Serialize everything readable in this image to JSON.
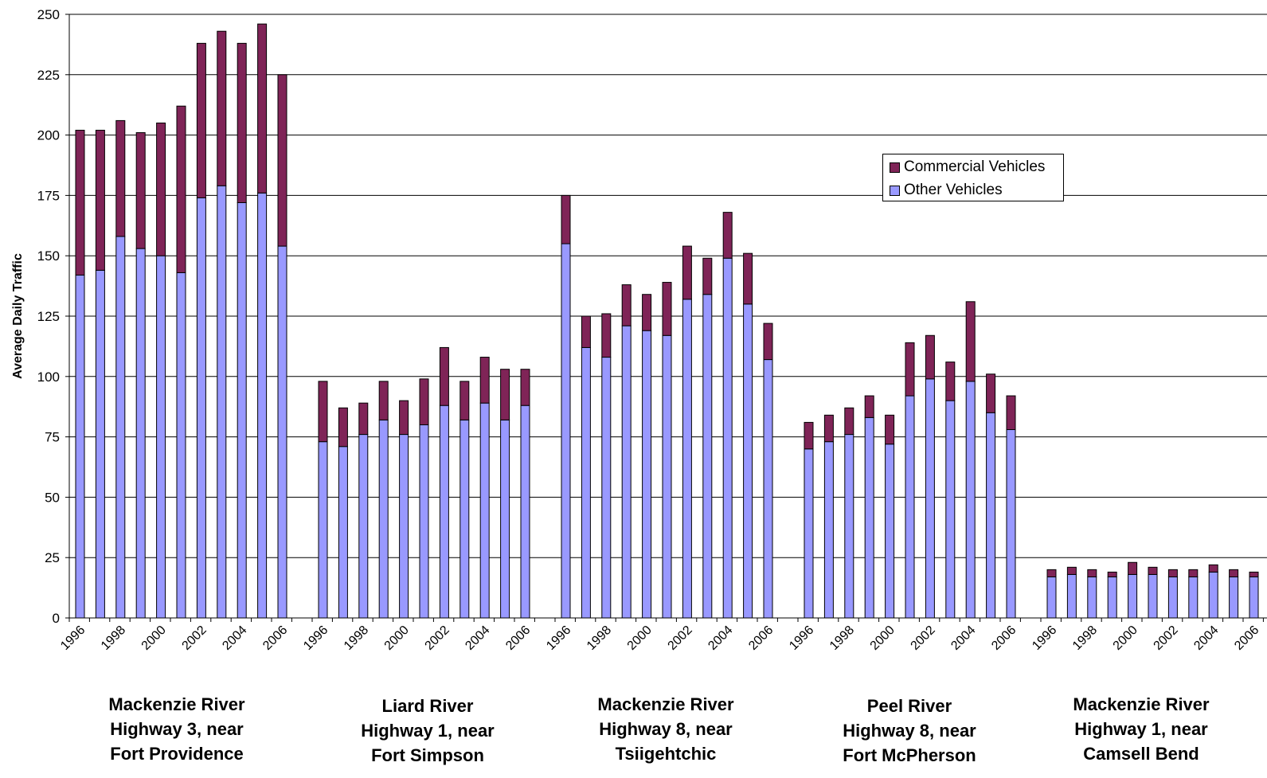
{
  "chart_data": {
    "type": "bar",
    "stacked": true,
    "ylabel": "Average Daily Traffic",
    "ylim": [
      0,
      250
    ],
    "yticks": [
      0,
      25,
      50,
      75,
      100,
      125,
      150,
      175,
      200,
      225,
      250
    ],
    "grid": true,
    "legend_position": "upper-right",
    "series_order": [
      "Other Vehicles",
      "Commercial Vehicles"
    ],
    "series_colors": {
      "Other Vehicles": "#9999ff",
      "Commercial Vehicles": "#7f2457"
    },
    "legend": [
      {
        "name": "Commercial Vehicles",
        "color": "#7f2457"
      },
      {
        "name": "Other Vehicles",
        "color": "#9999ff"
      }
    ],
    "years": [
      "1996",
      "1997",
      "1998",
      "1999",
      "2000",
      "2001",
      "2002",
      "2003",
      "2004",
      "2005",
      "2006"
    ],
    "groups": [
      {
        "label_lines": [
          "Mackenzie River",
          "Highway 3, near",
          "Fort Providence"
        ],
        "other": [
          142,
          144,
          158,
          153,
          150,
          143,
          174,
          179,
          172,
          176,
          154
        ],
        "commercial": [
          60,
          58,
          48,
          48,
          55,
          69,
          64,
          64,
          66,
          70,
          71
        ]
      },
      {
        "label_lines": [
          "Liard River",
          "Highway 1, near",
          "Fort Simpson"
        ],
        "other": [
          73,
          71,
          76,
          82,
          76,
          80,
          88,
          82,
          89,
          82,
          88
        ],
        "commercial": [
          25,
          16,
          13,
          16,
          14,
          19,
          24,
          16,
          19,
          21,
          15
        ]
      },
      {
        "label_lines": [
          "Mackenzie River",
          "Highway 8, near",
          "Tsiigehtchic"
        ],
        "other": [
          155,
          112,
          108,
          121,
          119,
          117,
          132,
          134,
          149,
          130,
          107
        ],
        "commercial": [
          20,
          13,
          18,
          17,
          15,
          22,
          22,
          15,
          19,
          21,
          15
        ]
      },
      {
        "label_lines": [
          "Peel River",
          "Highway 8, near",
          "Fort McPherson"
        ],
        "other": [
          70,
          73,
          76,
          83,
          72,
          92,
          99,
          90,
          98,
          85,
          78
        ],
        "commercial": [
          11,
          11,
          11,
          9,
          12,
          22,
          18,
          16,
          33,
          16,
          14
        ]
      },
      {
        "label_lines": [
          "Mackenzie River",
          "Highway 1, near",
          "Camsell Bend"
        ],
        "other": [
          17,
          18,
          17,
          17,
          18,
          18,
          17,
          17,
          19,
          17,
          17
        ],
        "commercial": [
          3,
          3,
          3,
          2,
          5,
          3,
          3,
          3,
          3,
          3,
          2
        ]
      }
    ]
  }
}
